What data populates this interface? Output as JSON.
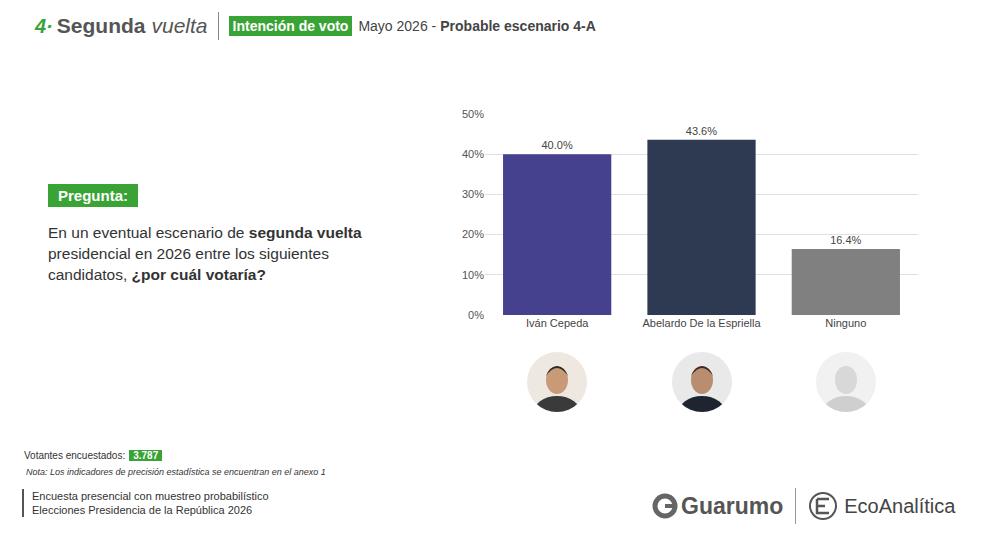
{
  "header": {
    "number": "4·",
    "title_bold": "Segunda",
    "title_italic": "vuelta",
    "tag": "Intención de voto",
    "period": "Mayo  2026 -",
    "scenario": "Probable escenario 4-A"
  },
  "question": {
    "label": "Pregunta:",
    "segments": [
      {
        "text": "En un eventual escenario de ",
        "bold": false
      },
      {
        "text": "segunda vuelta",
        "bold": true
      },
      {
        "text": " presidencial en 2026 entre los siguientes candidatos, ",
        "bold": false
      },
      {
        "text": "¿por cuál votaría?",
        "bold": true
      }
    ]
  },
  "chart_data": {
    "type": "bar",
    "categories": [
      "Iván Cepeda",
      "Abelardo De la Espriella",
      "Ninguno"
    ],
    "values": [
      40.0,
      43.6,
      16.4
    ],
    "value_labels": [
      "40.0%",
      "43.6%",
      "16.4%"
    ],
    "colors": [
      "#46418f",
      "#2e3a52",
      "#808080"
    ],
    "ylim": [
      0,
      50
    ],
    "yticks": [
      {
        "value": 0,
        "label": "0%"
      },
      {
        "value": 10,
        "label": "10%"
      },
      {
        "value": 20,
        "label": "20%"
      },
      {
        "value": 30,
        "label": "30%"
      },
      {
        "value": 40,
        "label": "40%"
      },
      {
        "value": 50,
        "label": "50%"
      }
    ],
    "grid": true,
    "data_labels": true
  },
  "footer": {
    "sample_label": "Votantes encuestados:",
    "sample_value": "3.787",
    "note": "Nota: Los indicadores de precisión estadística se encuentran en el anexo 1",
    "method_lines": [
      "Encuesta presencial con muestreo probabilístico",
      "Elecciones Presidencia de la República 2026"
    ],
    "logos": [
      "Guarumo",
      "EcoAnalítica"
    ]
  }
}
